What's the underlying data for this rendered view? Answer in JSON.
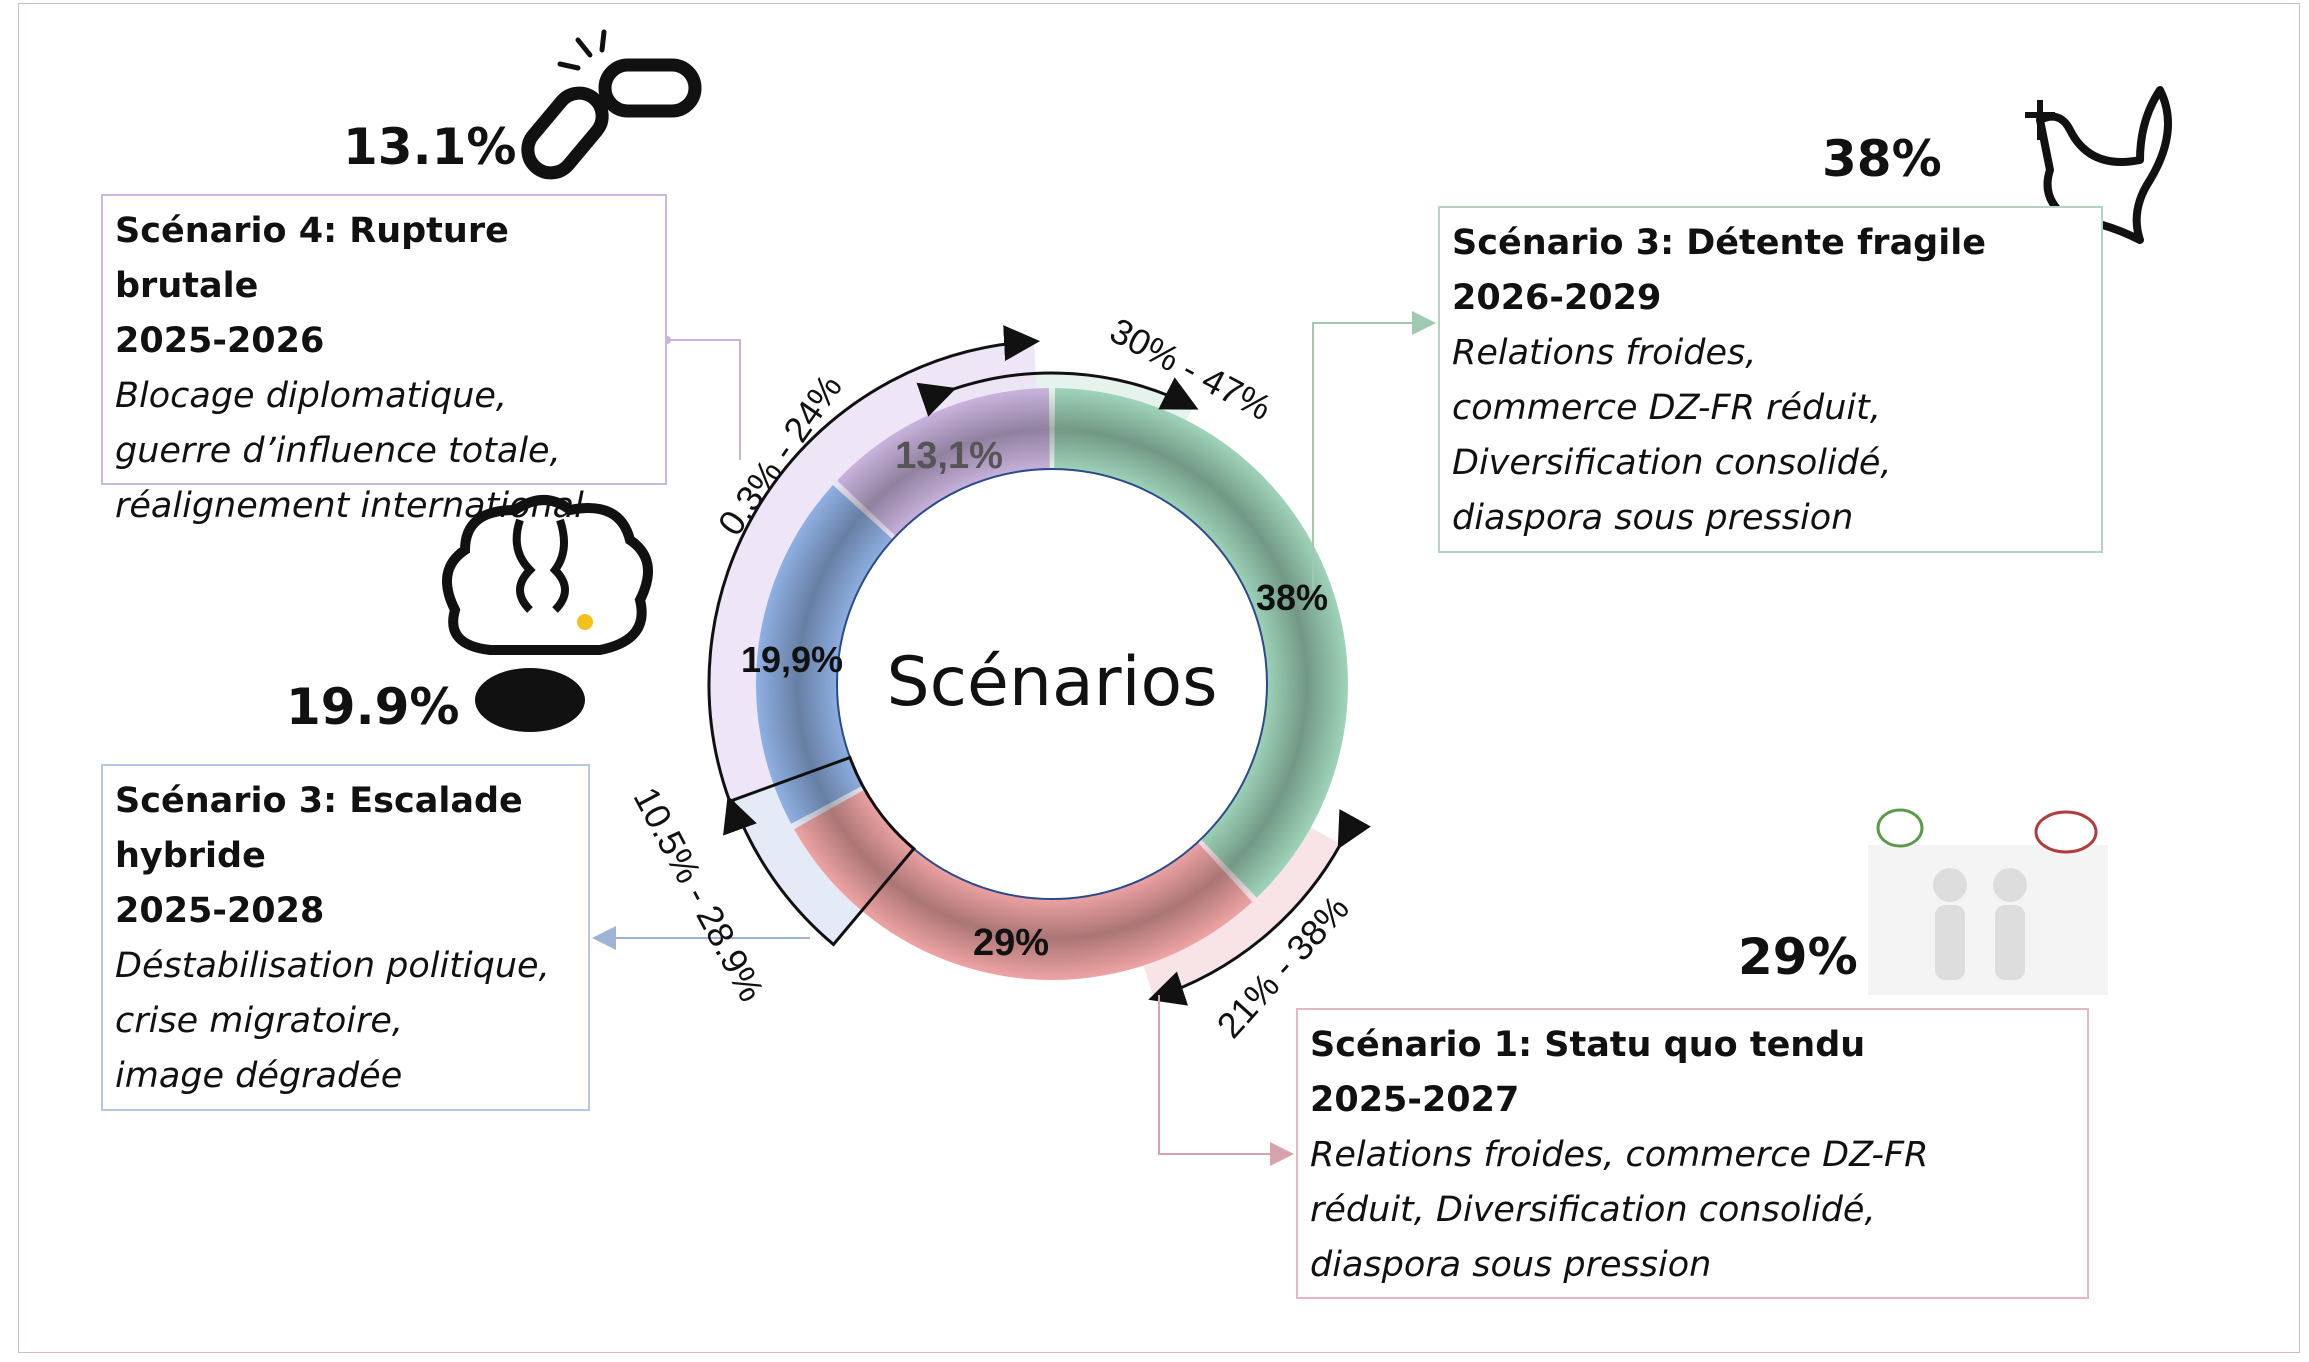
{
  "title": "Scénarios",
  "scenarios": [
    {
      "key": "s4",
      "name": "Scénario 4: Rupture brutale",
      "years": "2025-2026",
      "desc": [
        "Blocage diplomatique,",
        "guerre d’influence totale,",
        "réalignement international"
      ],
      "big": "13.1%",
      "slice_label": "13,1%",
      "range": "0.3% - 24%",
      "icon": "broken-chain-icon",
      "color": "#c9b3dd"
    },
    {
      "key": "s3d",
      "name": "Scénario 3: Détente fragile",
      "years": "2026-2029",
      "desc": [
        "Relations froides,",
        "commerce DZ-FR réduit,",
        "Diversification consolidé,",
        "diaspora sous pression"
      ],
      "big": "38%",
      "slice_label": "38%",
      "range": "30% - 47%",
      "icon": "peace-dove-icon",
      "color": "#9fd4b9"
    },
    {
      "key": "s3e",
      "name": "Scénario 3: Escalade hybride",
      "name2": "hybride",
      "years": "2025-2028",
      "desc": [
        "Déstabilisation politique,",
        "crise migratoire,",
        "image dégradée"
      ],
      "big": "19.9%",
      "slice_label": "19,9%",
      "range": "10.5% - 28.9%",
      "icon": "brain-bomb-icon",
      "color": "#8fb0e3"
    },
    {
      "key": "s1",
      "name": "Scénario 1: Statu quo tendu",
      "years": "2025-2027",
      "desc": [
        "Relations froides, commerce DZ-FR",
        "réduit, Diversification consolidé,",
        "diaspora sous pression"
      ],
      "big": "29%",
      "slice_label": "29%",
      "range": "21% - 38%",
      "icon": "discussion-figures-icon",
      "color": "#eea3a3"
    }
  ],
  "escalade_title": [
    "Scénario 3: Escalade",
    "hybride"
  ],
  "chart_data": {
    "type": "pie",
    "title": "Scénarios",
    "slices": [
      {
        "name": "Scénario 3: Détente fragile",
        "value": 38,
        "label": "38%",
        "range": [
          30,
          47
        ],
        "color": "#9fd4b9"
      },
      {
        "name": "Scénario 1: Statu quo tendu",
        "value": 29,
        "label": "29%",
        "range": [
          21,
          38
        ],
        "color": "#eea3a3"
      },
      {
        "name": "Scénario 3: Escalade hybride",
        "value": 19.9,
        "label": "19,9%",
        "range": [
          10.5,
          28.9
        ],
        "color": "#8fb0e3"
      },
      {
        "name": "Scénario 4: Rupture brutale",
        "value": 13.1,
        "label": "13,1%",
        "range": [
          0.3,
          24
        ],
        "color": "#c9b3dd"
      }
    ]
  }
}
